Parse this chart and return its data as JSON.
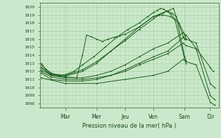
{
  "title": "Pression niveau de la mer( hPa )",
  "ylabel_ticks": [
    1008,
    1009,
    1010,
    1011,
    1012,
    1013,
    1014,
    1015,
    1016,
    1017,
    1018,
    1019,
    1020
  ],
  "ylim": [
    1007.5,
    1020.5
  ],
  "xlim": [
    0,
    6.3
  ],
  "xtick_labels": [
    "Mar",
    "Mer",
    "Jeu",
    "Ven",
    "Sam",
    "Dir"
  ],
  "xtick_positions": [
    0.9,
    2.0,
    3.0,
    4.0,
    5.1,
    6.0
  ],
  "bg_color": "#cce8cc",
  "grid_color": "#99cc99",
  "line_color": "#1a5c1a",
  "lines": [
    {
      "x": [
        0.05,
        0.2,
        0.4,
        0.65,
        0.9,
        1.2,
        1.5,
        1.9,
        2.3,
        2.7,
        3.1,
        3.5,
        3.8,
        4.0,
        4.15,
        4.25,
        4.35,
        4.45,
        4.6,
        4.75,
        5.1,
        5.15
      ],
      "y": [
        1013.0,
        1012.3,
        1011.8,
        1011.5,
        1011.6,
        1012.0,
        1012.8,
        1013.8,
        1015.0,
        1016.2,
        1017.2,
        1018.0,
        1018.8,
        1019.3,
        1019.6,
        1019.8,
        1019.7,
        1019.5,
        1019.1,
        1018.5,
        1013.5,
        1013.0
      ]
    },
    {
      "x": [
        0.05,
        0.4,
        0.9,
        1.5,
        2.0,
        2.5,
        3.0,
        3.5,
        4.0,
        4.2,
        4.35,
        4.5,
        4.65,
        4.8,
        5.1,
        5.15
      ],
      "y": [
        1012.8,
        1011.7,
        1011.5,
        1012.2,
        1013.2,
        1014.5,
        1015.8,
        1017.2,
        1018.5,
        1019.0,
        1019.3,
        1019.5,
        1019.2,
        1018.8,
        1013.8,
        1013.3
      ]
    },
    {
      "x": [
        0.05,
        0.4,
        0.9,
        1.5,
        2.0,
        2.5,
        3.0,
        3.5,
        4.0,
        4.3,
        4.6,
        4.9,
        5.1,
        5.15
      ],
      "y": [
        1012.5,
        1011.6,
        1011.4,
        1012.0,
        1013.0,
        1014.5,
        1016.0,
        1017.5,
        1018.8,
        1019.0,
        1018.8,
        1018.0,
        1016.5,
        1016.0
      ]
    },
    {
      "x": [
        0.05,
        0.4,
        0.9,
        1.3,
        1.5,
        1.65,
        1.8,
        2.0,
        2.2,
        2.4,
        2.6,
        2.8,
        3.0,
        3.5,
        4.0,
        4.3,
        4.5,
        4.7,
        5.05,
        5.1
      ],
      "y": [
        1012.5,
        1011.5,
        1011.3,
        1011.2,
        1014.0,
        1016.5,
        1016.3,
        1016.0,
        1015.7,
        1016.0,
        1016.2,
        1016.4,
        1016.6,
        1017.5,
        1018.8,
        1019.2,
        1019.5,
        1019.8,
        1016.3,
        1016.0
      ]
    },
    {
      "x": [
        0.05,
        0.4,
        0.9,
        1.5,
        2.0,
        2.5,
        3.0,
        3.5,
        4.0,
        4.5,
        5.05,
        5.15,
        6.0,
        6.1
      ],
      "y": [
        1012.2,
        1011.5,
        1011.2,
        1011.2,
        1011.5,
        1012.0,
        1012.8,
        1013.8,
        1014.8,
        1015.5,
        1016.8,
        1016.5,
        1012.5,
        1012.0
      ]
    },
    {
      "x": [
        0.05,
        0.4,
        0.9,
        1.5,
        2.0,
        2.5,
        3.0,
        3.5,
        4.0,
        4.5,
        5.05,
        5.15,
        5.5,
        6.0,
        6.15
      ],
      "y": [
        1012.0,
        1011.3,
        1011.0,
        1011.0,
        1011.2,
        1011.5,
        1012.2,
        1013.0,
        1013.8,
        1014.5,
        1016.2,
        1016.0,
        1015.5,
        1010.5,
        1010.0
      ]
    },
    {
      "x": [
        0.05,
        0.4,
        0.9,
        1.5,
        2.0,
        2.5,
        3.0,
        3.5,
        4.0,
        4.5,
        5.05,
        5.15,
        5.5,
        6.0,
        6.15
      ],
      "y": [
        1011.8,
        1011.0,
        1010.8,
        1010.8,
        1011.0,
        1011.5,
        1012.0,
        1012.8,
        1013.5,
        1014.2,
        1015.5,
        1015.2,
        1014.8,
        1009.0,
        1008.5
      ]
    },
    {
      "x": [
        0.05,
        0.9,
        2.0,
        3.0,
        4.0,
        4.5,
        5.05,
        5.15,
        5.5,
        6.0,
        6.15
      ],
      "y": [
        1011.2,
        1010.5,
        1010.5,
        1011.0,
        1011.5,
        1012.0,
        1013.5,
        1013.2,
        1012.8,
        1008.2,
        1007.8
      ]
    }
  ]
}
